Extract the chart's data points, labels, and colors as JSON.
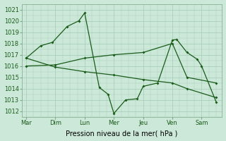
{
  "background_color": "#cce8d8",
  "grid_color": "#aacfba",
  "line_color": "#1a5c1a",
  "marker_style": "D",
  "marker_size": 2.0,
  "linewidth": 0.9,
  "ylim": [
    1011.5,
    1021.5
  ],
  "yticks": [
    1012,
    1013,
    1014,
    1015,
    1016,
    1017,
    1018,
    1019,
    1020,
    1021
  ],
  "xlabel": "Pression niveau de la mer( hPa )",
  "xlabel_fontsize": 7,
  "tick_fontsize": 6,
  "days": [
    "Mar",
    "Dim",
    "Lun",
    "Mer",
    "Jeu",
    "Ven",
    "Sam"
  ],
  "day_positions": [
    0,
    1,
    2,
    3,
    4,
    5,
    6
  ],
  "xlim": [
    -0.15,
    6.7
  ],
  "seriesA_x": [
    0,
    0.5,
    0.9,
    1.4,
    1.8,
    2.0,
    2.5,
    2.8,
    3.0,
    3.4,
    3.8,
    4.0,
    4.5,
    5.0,
    5.15,
    5.5,
    5.85,
    6.0,
    6.5
  ],
  "seriesA_y": [
    1016.7,
    1017.8,
    1018.1,
    1019.5,
    1020.0,
    1020.7,
    1014.1,
    1013.5,
    1011.8,
    1013.0,
    1013.1,
    1014.2,
    1014.5,
    1018.3,
    1018.35,
    1017.2,
    1016.6,
    1016.0,
    1012.8
  ],
  "seriesB_x": [
    0,
    1,
    2,
    3,
    4,
    5,
    5.5,
    6.5
  ],
  "seriesB_y": [
    1016.0,
    1016.1,
    1016.7,
    1017.0,
    1017.2,
    1018.0,
    1015.0,
    1014.5
  ],
  "seriesC_x": [
    0,
    1,
    2,
    3,
    4,
    5,
    5.5,
    6.5
  ],
  "seriesC_y": [
    1016.7,
    1015.9,
    1015.5,
    1015.2,
    1014.8,
    1014.5,
    1014.0,
    1013.2
  ]
}
